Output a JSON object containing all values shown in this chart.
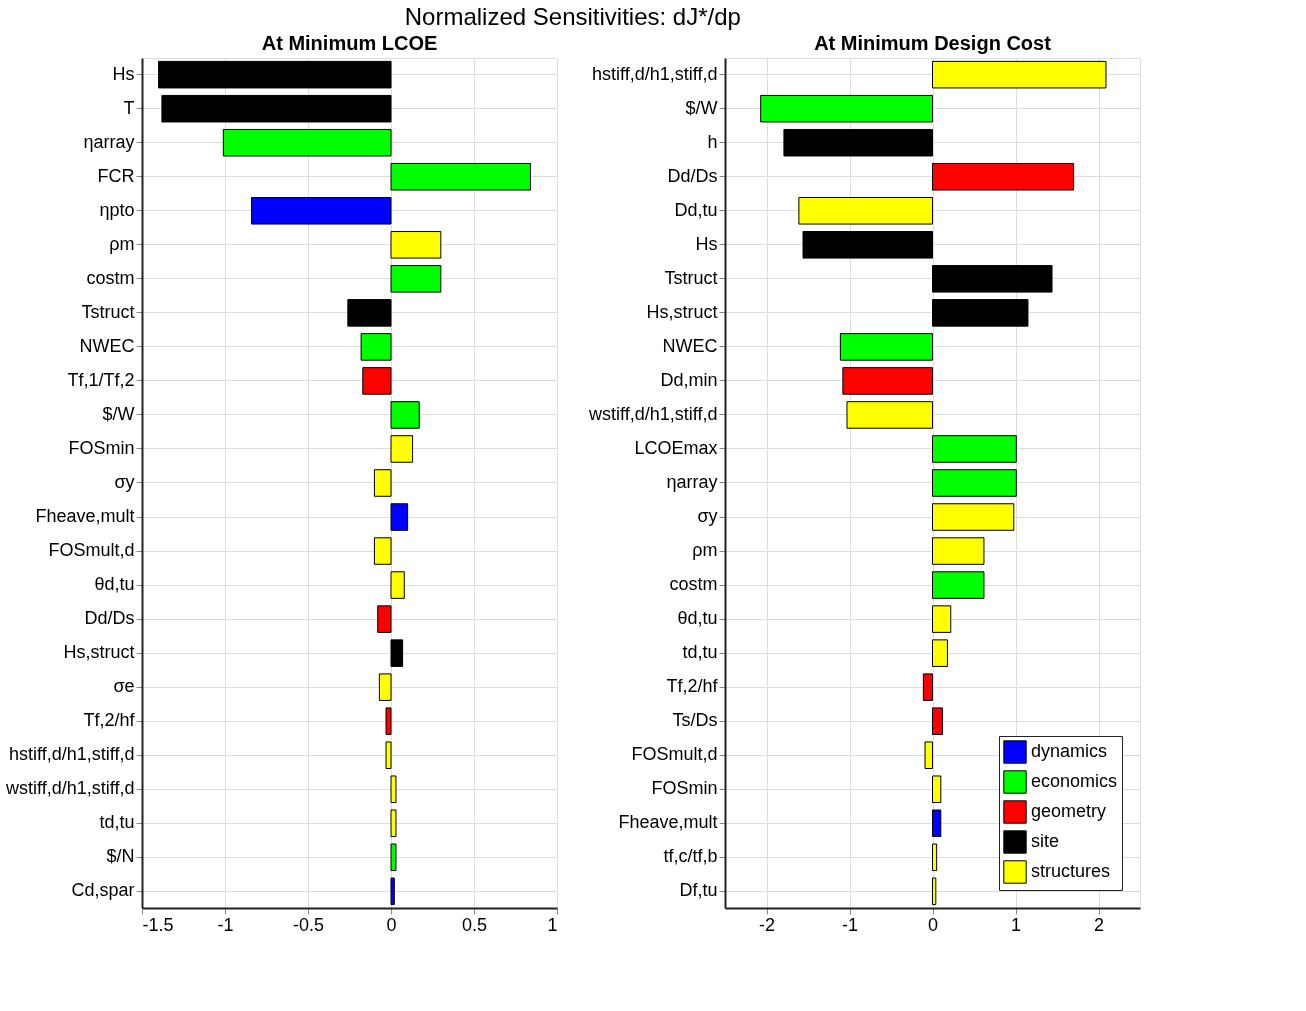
{
  "chart_data": [
    {
      "type": "bar",
      "orientation": "horizontal",
      "title": "Normalized Sensitivities: dJ*/dp",
      "subtitle": "At Minimum LCOE",
      "grid": true,
      "legend": false,
      "categories": [
        "Hs",
        "T",
        "ηarray",
        "FCR",
        "ηpto",
        "ρm",
        "costm",
        "Tstruct",
        "NWEC",
        "Tf,1/Tf,2",
        "$/W",
        "FOSmin",
        "σy",
        "Fheave,mult",
        "FOSmult,d",
        "θd,tu",
        "Dd/Ds",
        "Hs,struct",
        "σe",
        "Tf,2/hf",
        "hstiff,d/h1,stiff,d",
        "wstiff,d/h1,stiff,d",
        "td,tu",
        "$/N",
        "Cd,spar"
      ],
      "xlim": [
        -1.5,
        1
      ],
      "xticks": [
        -1.5,
        -1,
        -0.5,
        0,
        0.5,
        1
      ],
      "series": [
        {
          "color": "#0000ff",
          "values": [
            null,
            null,
            null,
            null,
            -0.84,
            null,
            null,
            null,
            null,
            null,
            null,
            null,
            null,
            0.1,
            null,
            null,
            null,
            null,
            null,
            null,
            null,
            null,
            null,
            null,
            0.02
          ]
        },
        {
          "color": "#00ff00",
          "values": [
            null,
            null,
            -1.01,
            0.84,
            null,
            null,
            0.3,
            null,
            -0.18,
            null,
            0.17,
            null,
            null,
            null,
            null,
            null,
            null,
            null,
            null,
            null,
            null,
            null,
            null,
            0.03,
            null
          ]
        },
        {
          "color": "#ff0000",
          "values": [
            null,
            null,
            null,
            null,
            null,
            null,
            null,
            null,
            null,
            -0.17,
            null,
            null,
            null,
            null,
            null,
            null,
            -0.08,
            null,
            null,
            -0.03,
            null,
            null,
            null,
            null,
            null
          ]
        },
        {
          "color": "#000000",
          "values": [
            -1.4,
            -1.38,
            null,
            null,
            null,
            null,
            null,
            -0.26,
            null,
            null,
            null,
            null,
            null,
            null,
            null,
            null,
            null,
            0.07,
            null,
            null,
            null,
            null,
            null,
            null,
            null
          ]
        },
        {
          "color": "#ffff00",
          "values": [
            null,
            null,
            null,
            null,
            null,
            0.3,
            null,
            null,
            null,
            null,
            null,
            0.13,
            -0.1,
            null,
            -0.1,
            0.08,
            null,
            null,
            -0.07,
            null,
            -0.03,
            0.03,
            0.03,
            null,
            null
          ]
        }
      ]
    },
    {
      "type": "bar",
      "orientation": "horizontal",
      "title": "At Minimum Design Cost",
      "grid": true,
      "legend": "bottom right",
      "categories": [
        "hstiff,d/h1,stiff,d",
        "$/W",
        "h",
        "Dd/Ds",
        "Dd,tu",
        "Hs",
        "Tstruct",
        "Hs,struct",
        "NWEC",
        "Dd,min",
        "wstiff,d/h1,stiff,d",
        "LCOEmax",
        "ηarray",
        "σy",
        "ρm",
        "costm",
        "θd,tu",
        "td,tu",
        "Tf,2/hf",
        "Ts/Ds",
        "FOSmult,d",
        "FOSmin",
        "Fheave,mult",
        "tf,c/tf,b",
        "Df,tu"
      ],
      "xlim": [
        -2.5,
        2.5
      ],
      "xticks": [
        -2,
        -1,
        0,
        1,
        2
      ],
      "series": [
        {
          "name": "dynamics",
          "color": "#0000ff",
          "values": [
            null,
            null,
            null,
            null,
            null,
            null,
            null,
            null,
            null,
            null,
            null,
            null,
            null,
            null,
            null,
            null,
            null,
            null,
            null,
            null,
            null,
            null,
            0.1,
            null,
            null
          ]
        },
        {
          "name": "economics",
          "color": "#00ff00",
          "values": [
            null,
            -2.07,
            null,
            null,
            null,
            null,
            null,
            null,
            -1.11,
            null,
            null,
            1.01,
            1.01,
            null,
            null,
            0.62,
            null,
            null,
            null,
            null,
            null,
            null,
            null,
            null,
            null
          ]
        },
        {
          "name": "geometry",
          "color": "#ff0000",
          "values": [
            null,
            null,
            null,
            1.7,
            null,
            null,
            null,
            null,
            null,
            -1.08,
            null,
            null,
            null,
            null,
            null,
            null,
            null,
            null,
            -0.11,
            0.12,
            null,
            null,
            null,
            null,
            null
          ]
        },
        {
          "name": "site",
          "color": "#000000",
          "values": [
            null,
            null,
            -1.79,
            null,
            null,
            -1.56,
            1.44,
            1.15,
            null,
            null,
            null,
            null,
            null,
            null,
            null,
            null,
            null,
            null,
            null,
            null,
            null,
            null,
            null,
            null,
            null
          ]
        },
        {
          "name": "structures",
          "color": "#ffff00",
          "values": [
            2.09,
            null,
            null,
            null,
            -1.61,
            null,
            null,
            null,
            null,
            null,
            -1.03,
            null,
            null,
            0.98,
            0.62,
            null,
            0.22,
            0.18,
            null,
            null,
            -0.09,
            0.1,
            null,
            0.05,
            0.04
          ]
        }
      ]
    }
  ]
}
